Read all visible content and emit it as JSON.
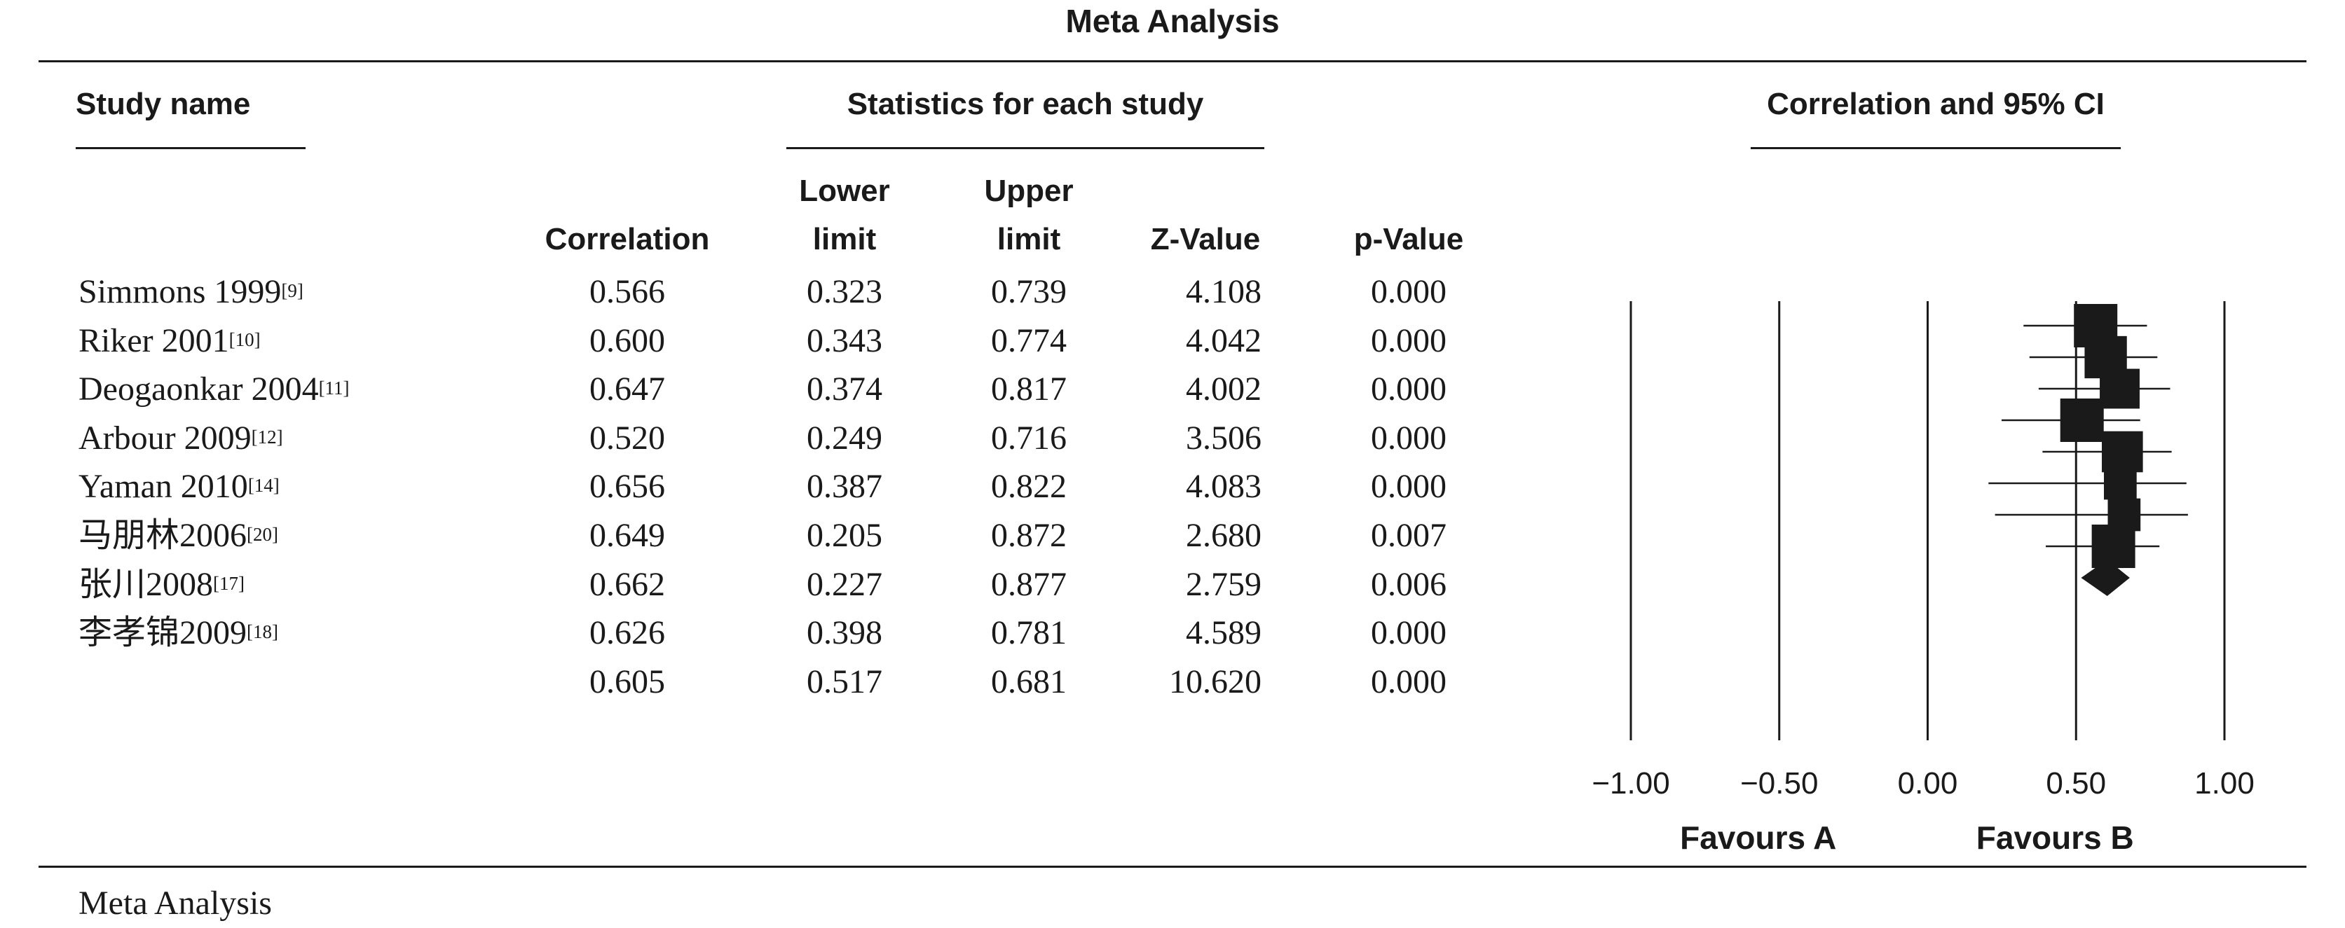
{
  "title": "Meta Analysis",
  "headers": {
    "study_name": "Study name",
    "statistics": "Statistics for each study",
    "plot": "Correlation and 95% CI",
    "correlation": "Correlation",
    "lower_1": "Lower",
    "lower_2": "limit",
    "upper_1": "Upper",
    "upper_2": "limit",
    "z_value": "Z-Value",
    "p_value": "p-Value"
  },
  "rows": [
    {
      "name": "Simmons 1999",
      "ref": "[9]",
      "correlation": "0.566",
      "lower": "0.323",
      "upper": "0.739",
      "z": "4.108",
      "p": "0.000"
    },
    {
      "name": "Riker 2001",
      "ref": "[10]",
      "correlation": "0.600",
      "lower": "0.343",
      "upper": "0.774",
      "z": "4.042",
      "p": "0.000"
    },
    {
      "name": "Deogaonkar 2004",
      "ref": "[11]",
      "correlation": "0.647",
      "lower": "0.374",
      "upper": "0.817",
      "z": "4.002",
      "p": "0.000"
    },
    {
      "name": "Arbour 2009",
      "ref": "[12]",
      "correlation": "0.520",
      "lower": "0.249",
      "upper": "0.716",
      "z": "3.506",
      "p": "0.000"
    },
    {
      "name": "Yaman 2010",
      "ref": "[14]",
      "correlation": "0.656",
      "lower": "0.387",
      "upper": "0.822",
      "z": "4.083",
      "p": "0.000"
    },
    {
      "name": "马朋林2006",
      "ref": "[20]",
      "correlation": "0.649",
      "lower": "0.205",
      "upper": "0.872",
      "z": "2.680",
      "p": "0.007"
    },
    {
      "name": "张川2008",
      "ref": "[17]",
      "correlation": "0.662",
      "lower": "0.227",
      "upper": "0.877",
      "z": "2.759",
      "p": "0.006"
    },
    {
      "name": "李孝锦2009",
      "ref": "[18]",
      "correlation": "0.626",
      "lower": "0.398",
      "upper": "0.781",
      "z": "4.589",
      "p": "0.000"
    },
    {
      "name": "",
      "ref": "",
      "correlation": "0.605",
      "lower": "0.517",
      "upper": "0.681",
      "z": "10.620",
      "p": "0.000"
    }
  ],
  "footer": "Meta Analysis",
  "chart_data": {
    "type": "forest",
    "title": "Correlation and 95% CI",
    "x_ticks": [
      "−1.00",
      "−0.50",
      "0.00",
      "0.50",
      "1.00"
    ],
    "x_tick_values": [
      -1.0,
      -0.5,
      0.0,
      0.5,
      1.0
    ],
    "xlim": [
      -1.0,
      1.0
    ],
    "favours_left": "Favours A",
    "favours_right": "Favours B",
    "studies": [
      {
        "estimate": 0.566,
        "lower": 0.323,
        "upper": 0.739,
        "weight": 1.0
      },
      {
        "estimate": 0.6,
        "lower": 0.343,
        "upper": 0.774,
        "weight": 0.95
      },
      {
        "estimate": 0.647,
        "lower": 0.374,
        "upper": 0.817,
        "weight": 0.85
      },
      {
        "estimate": 0.52,
        "lower": 0.249,
        "upper": 0.716,
        "weight": 1.0
      },
      {
        "estimate": 0.656,
        "lower": 0.387,
        "upper": 0.822,
        "weight": 0.9
      },
      {
        "estimate": 0.649,
        "lower": 0.205,
        "upper": 0.872,
        "weight": 0.55
      },
      {
        "estimate": 0.662,
        "lower": 0.227,
        "upper": 0.877,
        "weight": 0.55
      },
      {
        "estimate": 0.626,
        "lower": 0.398,
        "upper": 0.781,
        "weight": 1.0
      }
    ],
    "summary": {
      "estimate": 0.605,
      "lower": 0.517,
      "upper": 0.681
    },
    "grid": true
  }
}
